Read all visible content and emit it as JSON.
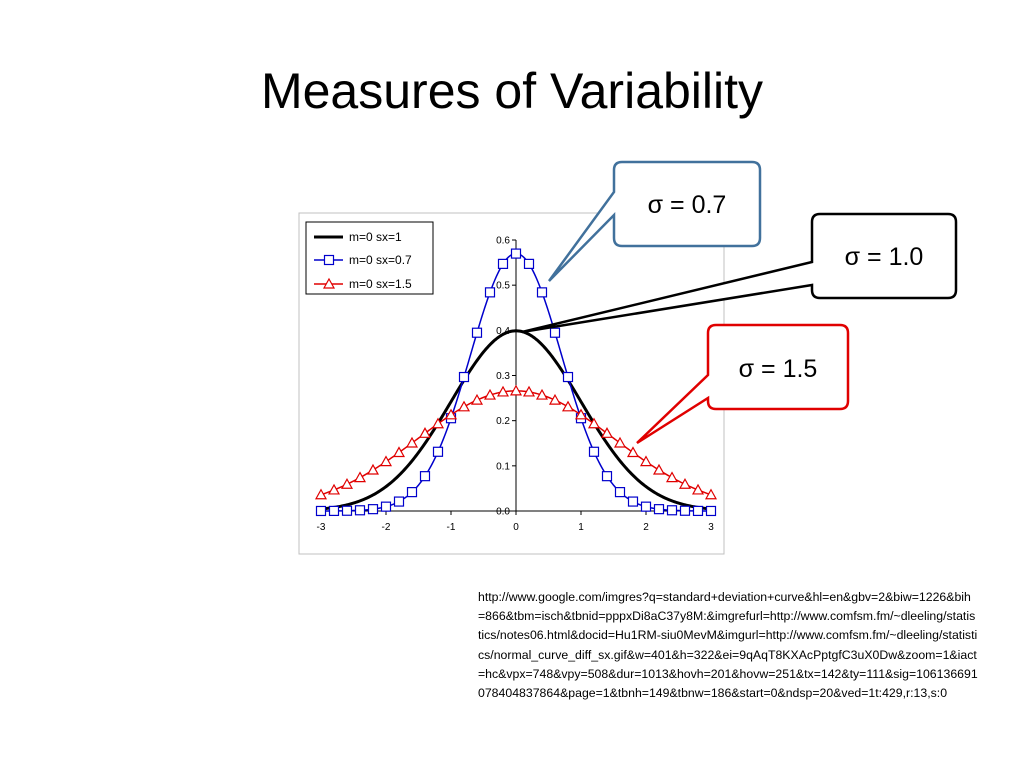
{
  "slide": {
    "title": "Measures of Variability",
    "source_url": "http://www.google.com/imgres?q=standard+deviation+curve&hl=en&gbv=2&biw=1226&bih=866&tbm=isch&tbnid=pppxDi8aC37y8M:&imgrefurl=http://www.comfsm.fm/~dleeling/statistics/notes06.html&docid=Hu1RM-siu0MevM&imgurl=http://www.comfsm.fm/~dleeling/statistics/normal_curve_diff_sx.gif&w=401&h=322&ei=9qAqT8KXAcPptgfC3uX0Dw&zoom=1&iact=hc&vpx=748&vpy=508&dur=1013&hovh=201&hovw=251&tx=142&ty=111&sig=106136691078404837864&page=1&tbnh=149&tbnw=186&start=0&ndsp=20&ved=1t:429,r:13,s:0"
  },
  "callouts": [
    {
      "text": "σ = 0.7",
      "color": "#41719c"
    },
    {
      "text": "σ = 1.0",
      "color": "#000000"
    },
    {
      "text": "σ = 1.5",
      "color": "#e00000"
    }
  ],
  "chart_data": {
    "type": "line",
    "xlim": [
      -3,
      3
    ],
    "ylim": [
      0,
      0.6
    ],
    "x_ticks": [
      -3,
      -2,
      -1,
      0,
      1,
      2,
      3
    ],
    "y_ticks": [
      0.0,
      0.1,
      0.2,
      0.3,
      0.4,
      0.5,
      0.6
    ],
    "y_tick_labels": [
      "0.0",
      "0.1",
      "0.2",
      "0.3",
      "0.4",
      "0.5",
      "0.6"
    ],
    "legend_position": "top-left",
    "grid": false,
    "series": [
      {
        "name": "m=0 sx=1",
        "mean": 0,
        "sd": 1.0,
        "color": "#000000",
        "marker": "none"
      },
      {
        "name": "m=0 sx=0.7",
        "mean": 0,
        "sd": 0.7,
        "color": "#0000cc",
        "marker": "square"
      },
      {
        "name": "m=0 sx=1.5",
        "mean": 0,
        "sd": 1.5,
        "color": "#e00000",
        "marker": "triangle"
      }
    ]
  }
}
